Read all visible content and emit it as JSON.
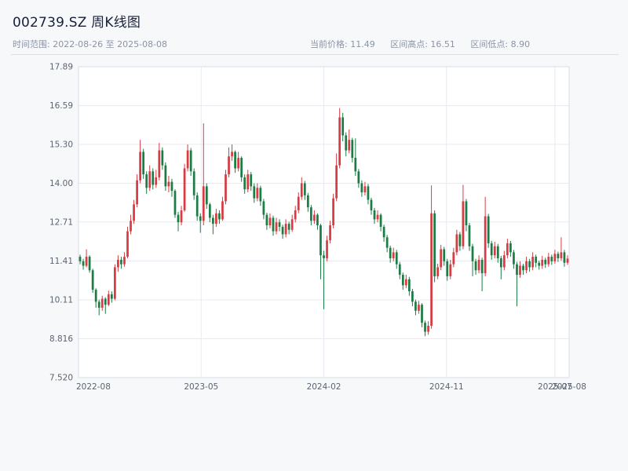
{
  "header": {
    "title": "002739.SZ 周K线图",
    "time_range": "时间范围: 2022-08-26 至 2025-08-08",
    "stats": {
      "current_price": "当前价格: 11.49",
      "range_high": "区间高点: 16.51",
      "range_low": "区间低点: 8.90"
    }
  },
  "chart_data": {
    "type": "candlestick",
    "title": "002739.SZ 周K线图",
    "frequency": "weekly",
    "up_color": "#d83b42",
    "down_color": "#1b7d45",
    "grid": true,
    "ylim": [
      7.52,
      17.89
    ],
    "y_ticks": [
      "17.89",
      "16.59",
      "15.30",
      "14.00",
      "12.71",
      "11.41",
      "10.11",
      "8.816",
      "7.520"
    ],
    "x_ticks": [
      {
        "label": "2022-08",
        "pos": 0.0
      },
      {
        "label": "2023-05",
        "pos": 0.25
      },
      {
        "label": "2024-02",
        "pos": 0.5
      },
      {
        "label": "2024-11",
        "pos": 0.75
      },
      {
        "label": "2025-07",
        "pos": 0.971
      },
      {
        "label": "2025-08",
        "pos": 1.0
      }
    ],
    "candles_format": [
      "open",
      "high",
      "low",
      "close"
    ],
    "candles": [
      [
        11.55,
        11.62,
        11.3,
        11.4
      ],
      [
        11.4,
        11.48,
        11.12,
        11.25
      ],
      [
        11.25,
        11.8,
        11.2,
        11.55
      ],
      [
        11.55,
        11.6,
        11.02,
        11.1
      ],
      [
        11.1,
        11.15,
        10.35,
        10.45
      ],
      [
        10.45,
        10.5,
        9.85,
        10.05
      ],
      [
        10.05,
        10.12,
        9.6,
        9.85
      ],
      [
        9.85,
        10.25,
        9.75,
        10.15
      ],
      [
        10.15,
        10.2,
        9.65,
        9.95
      ],
      [
        9.95,
        10.42,
        9.9,
        10.3
      ],
      [
        10.3,
        10.4,
        10.02,
        10.15
      ],
      [
        10.15,
        11.3,
        10.1,
        11.2
      ],
      [
        11.2,
        11.6,
        11.05,
        11.45
      ],
      [
        11.45,
        11.55,
        11.15,
        11.3
      ],
      [
        11.3,
        11.7,
        11.22,
        11.55
      ],
      [
        11.55,
        12.55,
        11.5,
        12.4
      ],
      [
        12.4,
        12.95,
        12.3,
        12.75
      ],
      [
        12.75,
        13.45,
        12.65,
        13.3
      ],
      [
        13.3,
        14.3,
        13.2,
        14.1
      ],
      [
        14.1,
        15.45,
        14.0,
        15.05
      ],
      [
        15.05,
        15.15,
        14.15,
        14.3
      ],
      [
        14.3,
        14.4,
        13.65,
        13.85
      ],
      [
        13.85,
        14.6,
        13.75,
        14.4
      ],
      [
        14.4,
        14.5,
        13.8,
        13.95
      ],
      [
        13.95,
        14.45,
        13.85,
        14.2
      ],
      [
        14.2,
        15.35,
        14.1,
        15.1
      ],
      [
        15.1,
        15.2,
        14.45,
        14.6
      ],
      [
        14.6,
        14.7,
        13.75,
        13.9
      ],
      [
        13.9,
        14.25,
        13.7,
        14.05
      ],
      [
        14.05,
        14.15,
        13.55,
        13.75
      ],
      [
        13.75,
        13.8,
        12.85,
        12.95
      ],
      [
        12.95,
        13.05,
        12.4,
        12.7
      ],
      [
        12.7,
        13.25,
        12.6,
        13.1
      ],
      [
        13.1,
        14.65,
        13.05,
        14.5
      ],
      [
        14.5,
        15.3,
        14.4,
        15.1
      ],
      [
        15.1,
        15.18,
        14.25,
        14.4
      ],
      [
        14.4,
        14.5,
        13.45,
        13.6
      ],
      [
        13.6,
        13.7,
        12.75,
        12.9
      ],
      [
        12.9,
        13.0,
        12.35,
        12.75
      ],
      [
        12.75,
        16.0,
        12.6,
        13.9
      ],
      [
        13.9,
        14.0,
        13.15,
        13.3
      ],
      [
        13.3,
        13.35,
        12.7,
        12.85
      ],
      [
        12.85,
        12.95,
        12.3,
        12.65
      ],
      [
        12.65,
        13.15,
        12.55,
        13.0
      ],
      [
        13.0,
        13.1,
        12.65,
        12.8
      ],
      [
        12.8,
        13.55,
        12.75,
        13.4
      ],
      [
        13.4,
        14.45,
        13.3,
        14.3
      ],
      [
        14.3,
        15.2,
        14.2,
        14.9
      ],
      [
        14.9,
        15.3,
        14.75,
        15.05
      ],
      [
        15.05,
        15.1,
        14.35,
        14.5
      ],
      [
        14.5,
        15.05,
        14.4,
        14.85
      ],
      [
        14.85,
        14.9,
        14.05,
        14.2
      ],
      [
        14.2,
        14.3,
        13.65,
        13.8
      ],
      [
        13.8,
        14.45,
        13.7,
        14.3
      ],
      [
        14.3,
        14.38,
        13.75,
        13.9
      ],
      [
        13.9,
        14.0,
        13.35,
        13.5
      ],
      [
        13.5,
        14.0,
        13.4,
        13.85
      ],
      [
        13.85,
        13.92,
        13.25,
        13.4
      ],
      [
        13.4,
        13.48,
        12.8,
        12.95
      ],
      [
        12.95,
        13.02,
        12.45,
        12.6
      ],
      [
        12.6,
        13.0,
        12.5,
        12.85
      ],
      [
        12.85,
        12.92,
        12.25,
        12.4
      ],
      [
        12.4,
        12.85,
        12.3,
        12.7
      ],
      [
        12.7,
        12.8,
        12.4,
        12.55
      ],
      [
        12.55,
        12.62,
        12.15,
        12.3
      ],
      [
        12.3,
        12.8,
        12.2,
        12.65
      ],
      [
        12.65,
        12.72,
        12.3,
        12.45
      ],
      [
        12.45,
        12.95,
        12.38,
        12.8
      ],
      [
        12.8,
        13.25,
        12.7,
        13.1
      ],
      [
        13.1,
        13.7,
        13.0,
        13.55
      ],
      [
        13.55,
        14.2,
        13.45,
        14.0
      ],
      [
        14.0,
        14.08,
        13.45,
        13.6
      ],
      [
        13.6,
        13.68,
        13.05,
        13.2
      ],
      [
        13.2,
        13.28,
        12.6,
        12.75
      ],
      [
        12.75,
        13.1,
        12.65,
        12.95
      ],
      [
        12.95,
        13.0,
        12.45,
        12.6
      ],
      [
        12.6,
        12.65,
        10.8,
        11.6
      ],
      [
        11.6,
        11.75,
        9.8,
        11.5
      ],
      [
        11.5,
        12.25,
        11.4,
        12.1
      ],
      [
        12.1,
        12.75,
        12.0,
        12.6
      ],
      [
        12.6,
        13.65,
        12.5,
        13.5
      ],
      [
        13.5,
        15.0,
        13.4,
        14.6
      ],
      [
        14.6,
        16.51,
        14.5,
        16.2
      ],
      [
        16.2,
        16.35,
        15.4,
        15.6
      ],
      [
        15.6,
        15.7,
        14.9,
        15.1
      ],
      [
        15.1,
        15.8,
        15.0,
        15.45
      ],
      [
        15.45,
        15.52,
        14.7,
        14.85
      ],
      [
        14.85,
        15.5,
        14.25,
        14.4
      ],
      [
        14.4,
        14.48,
        13.85,
        14.0
      ],
      [
        14.0,
        14.1,
        13.55,
        13.7
      ],
      [
        13.7,
        14.05,
        13.6,
        13.9
      ],
      [
        13.9,
        13.98,
        13.3,
        13.45
      ],
      [
        13.45,
        13.52,
        12.95,
        13.1
      ],
      [
        13.1,
        13.18,
        12.65,
        12.8
      ],
      [
        12.8,
        13.1,
        12.7,
        12.95
      ],
      [
        12.95,
        13.0,
        12.4,
        12.55
      ],
      [
        12.55,
        12.62,
        12.05,
        12.2
      ],
      [
        12.2,
        12.28,
        11.7,
        11.85
      ],
      [
        11.85,
        11.92,
        11.35,
        11.5
      ],
      [
        11.5,
        11.85,
        11.4,
        11.7
      ],
      [
        11.7,
        11.78,
        11.15,
        11.3
      ],
      [
        11.3,
        11.38,
        10.8,
        10.95
      ],
      [
        10.95,
        11.02,
        10.45,
        10.6
      ],
      [
        10.6,
        10.95,
        10.5,
        10.8
      ],
      [
        10.8,
        10.88,
        10.25,
        10.4
      ],
      [
        10.4,
        10.48,
        9.9,
        10.05
      ],
      [
        10.05,
        10.12,
        9.6,
        9.75
      ],
      [
        9.75,
        10.08,
        9.65,
        9.95
      ],
      [
        9.95,
        10.0,
        9.2,
        9.35
      ],
      [
        9.35,
        9.42,
        8.9,
        9.05
      ],
      [
        9.05,
        9.4,
        8.95,
        9.25
      ],
      [
        9.25,
        13.93,
        9.15,
        13.0
      ],
      [
        13.0,
        13.1,
        10.7,
        10.9
      ],
      [
        10.9,
        11.32,
        10.8,
        11.2
      ],
      [
        11.2,
        11.95,
        11.1,
        11.8
      ],
      [
        11.8,
        11.88,
        11.25,
        11.4
      ],
      [
        11.4,
        11.48,
        10.75,
        10.9
      ],
      [
        10.9,
        11.45,
        10.8,
        11.3
      ],
      [
        11.3,
        11.85,
        11.2,
        11.7
      ],
      [
        11.7,
        12.45,
        11.6,
        12.3
      ],
      [
        12.3,
        12.38,
        11.75,
        11.9
      ],
      [
        11.9,
        13.95,
        11.8,
        13.4
      ],
      [
        13.4,
        13.48,
        12.4,
        12.6
      ],
      [
        12.6,
        12.68,
        11.75,
        11.9
      ],
      [
        11.9,
        11.98,
        10.9,
        11.4
      ],
      [
        11.4,
        11.48,
        10.95,
        11.1
      ],
      [
        11.1,
        11.6,
        11.0,
        11.45
      ],
      [
        11.45,
        11.52,
        10.4,
        11.0
      ],
      [
        11.0,
        13.55,
        10.9,
        12.9
      ],
      [
        12.9,
        12.98,
        11.85,
        12.0
      ],
      [
        12.0,
        12.08,
        11.45,
        11.6
      ],
      [
        11.6,
        12.05,
        11.5,
        11.9
      ],
      [
        11.9,
        11.98,
        11.35,
        11.5
      ],
      [
        11.5,
        11.58,
        10.8,
        11.2
      ],
      [
        11.2,
        11.75,
        11.1,
        11.6
      ],
      [
        11.6,
        12.15,
        11.5,
        12.0
      ],
      [
        12.0,
        12.08,
        11.55,
        11.7
      ],
      [
        11.7,
        11.78,
        11.15,
        11.3
      ],
      [
        11.3,
        11.38,
        9.9,
        10.95
      ],
      [
        10.95,
        11.4,
        10.85,
        11.25
      ],
      [
        11.25,
        11.32,
        10.95,
        11.1
      ],
      [
        11.1,
        11.55,
        11.0,
        11.4
      ],
      [
        11.4,
        11.48,
        11.05,
        11.2
      ],
      [
        11.2,
        11.7,
        11.1,
        11.55
      ],
      [
        11.55,
        11.62,
        11.2,
        11.35
      ],
      [
        11.35,
        11.42,
        11.12,
        11.25
      ],
      [
        11.25,
        11.58,
        11.15,
        11.45
      ],
      [
        11.45,
        11.52,
        11.18,
        11.3
      ],
      [
        11.3,
        11.68,
        11.22,
        11.55
      ],
      [
        11.55,
        11.62,
        11.28,
        11.4
      ],
      [
        11.4,
        11.78,
        11.32,
        11.65
      ],
      [
        11.65,
        11.72,
        11.38,
        11.5
      ],
      [
        11.5,
        12.2,
        11.42,
        11.7
      ],
      [
        11.7,
        11.78,
        11.22,
        11.35
      ],
      [
        11.35,
        11.6,
        11.28,
        11.49
      ]
    ]
  }
}
